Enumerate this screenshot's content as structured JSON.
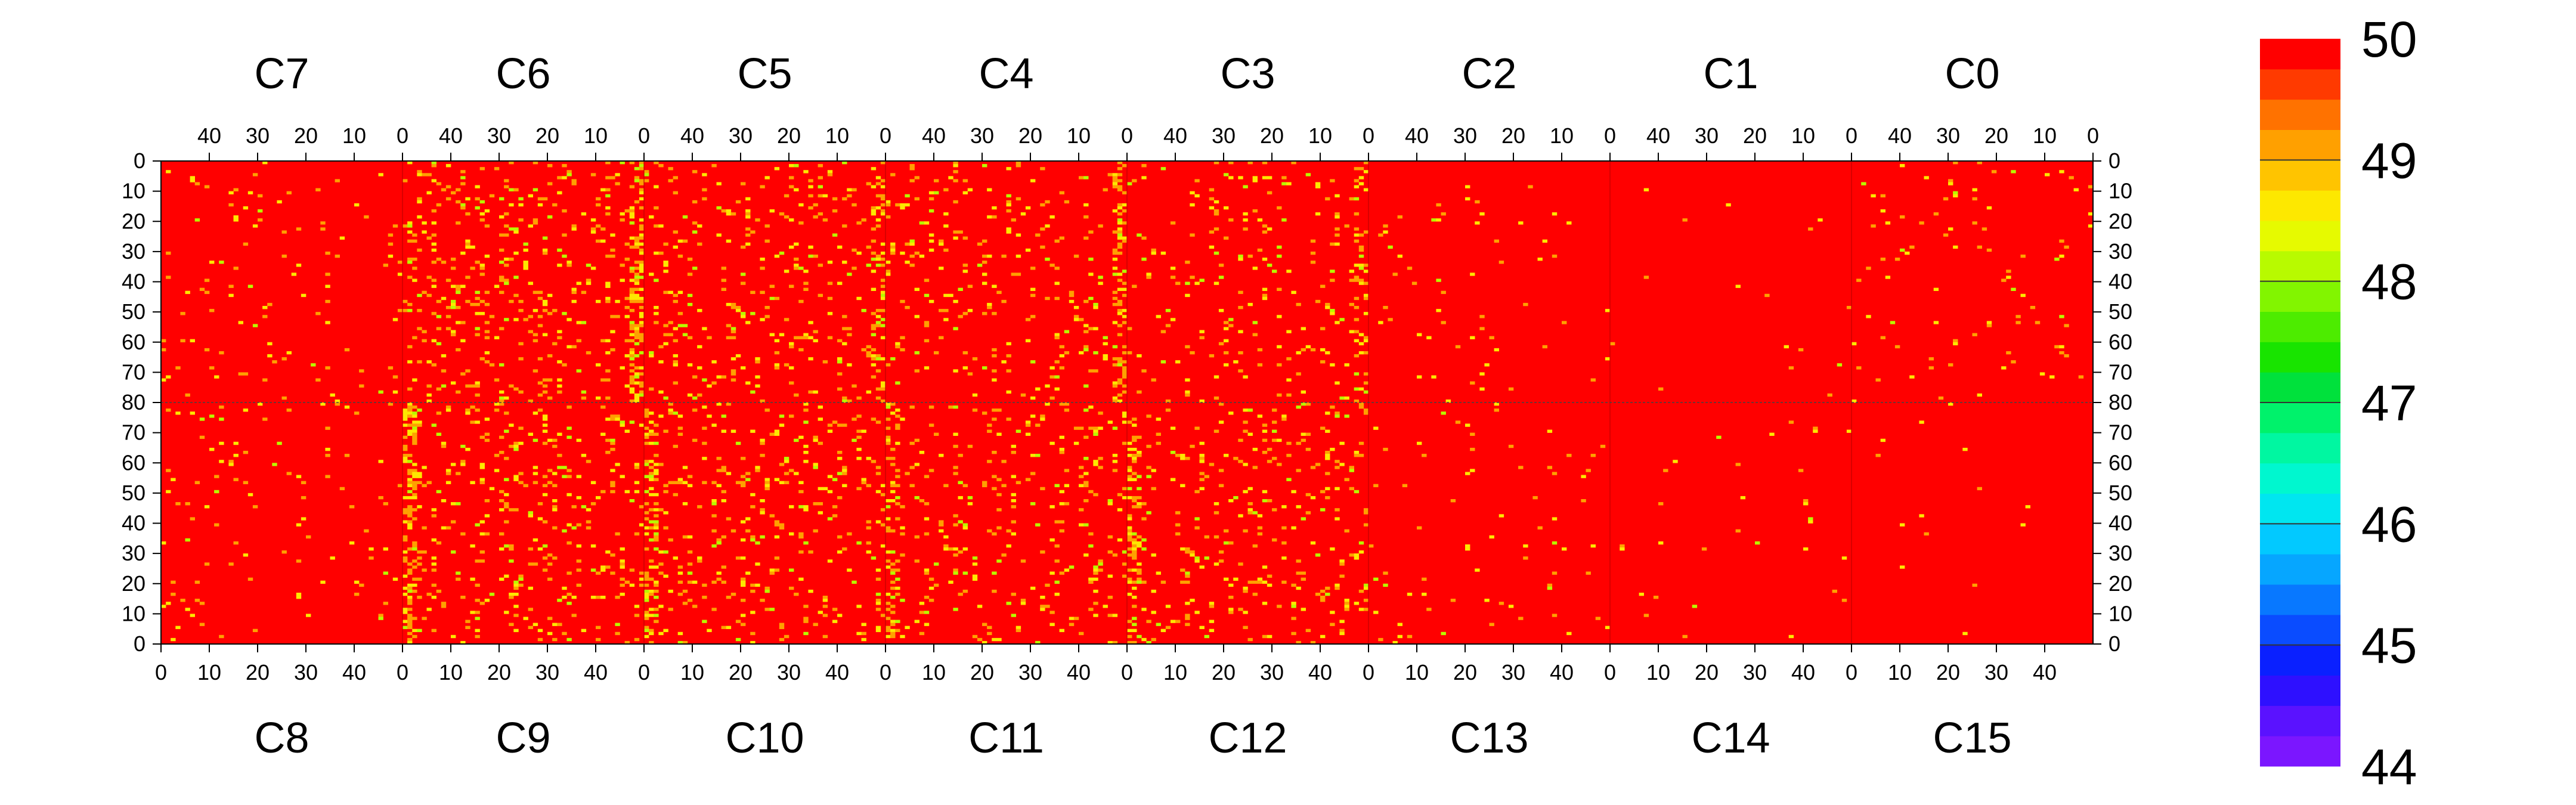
{
  "chart_data": {
    "type": "heatmap",
    "title": "",
    "xlabel": "",
    "ylabel": "",
    "top_chips": [
      "C7",
      "C6",
      "C5",
      "C4",
      "C3",
      "C2",
      "C1",
      "C0"
    ],
    "bottom_chips": [
      "C8",
      "C9",
      "C10",
      "C11",
      "C12",
      "C13",
      "C14",
      "C15"
    ],
    "columns_per_chip": 50,
    "rows_per_half": 80,
    "top_x_ticks": [
      "40",
      "30",
      "20",
      "10",
      "0"
    ],
    "top_x_tick_values": [
      40,
      30,
      20,
      10,
      0
    ],
    "bottom_x_ticks": [
      "0",
      "10",
      "20",
      "30",
      "40"
    ],
    "bottom_x_tick_values": [
      0,
      10,
      20,
      30,
      40
    ],
    "y_ticks_top_half": [
      "0",
      "10",
      "20",
      "30",
      "40",
      "50",
      "60",
      "70",
      "80"
    ],
    "y_ticks_bottom_half": [
      "70",
      "60",
      "50",
      "40",
      "30",
      "20",
      "10",
      "0"
    ],
    "y_tick_values_top_half": [
      0,
      10,
      20,
      30,
      40,
      50,
      60,
      70,
      80
    ],
    "y_tick_values_bottom_half": [
      70,
      60,
      50,
      40,
      30,
      20,
      10,
      0
    ],
    "zlim": [
      44,
      50
    ],
    "z_ticks": [
      "50",
      "49",
      "48",
      "47",
      "46",
      "45",
      "44"
    ],
    "z_tick_values": [
      50,
      49,
      48,
      47,
      46,
      45,
      44
    ],
    "dominant_value": 50,
    "typical_off_values": [
      49,
      48.5,
      48
    ],
    "chip_yellow_density_top": [
      0.025,
      0.09,
      0.07,
      0.06,
      0.045,
      0.015,
      0.004,
      0.018
    ],
    "chip_yellow_density_bottom": [
      0.025,
      0.08,
      0.075,
      0.065,
      0.07,
      0.02,
      0.005,
      0.004
    ],
    "dense_edge_columns": "columns near 0 of C9/C6, C10/C5, C11/C4, C12/C3 show elevated density of values ~49",
    "colorscale": [
      "#7b16ff",
      "#5a12ff",
      "#2e10ff",
      "#0a20ff",
      "#0a4cff",
      "#0878ff",
      "#06a6ff",
      "#02c9ff",
      "#00e6f0",
      "#00f7cf",
      "#00f7a1",
      "#00f26b",
      "#00e13c",
      "#18e400",
      "#4dec00",
      "#82f500",
      "#b8fa00",
      "#e6fa00",
      "#fde800",
      "#ffc400",
      "#ffa000",
      "#ff7200",
      "#ff3a00",
      "#ff0000"
    ]
  }
}
